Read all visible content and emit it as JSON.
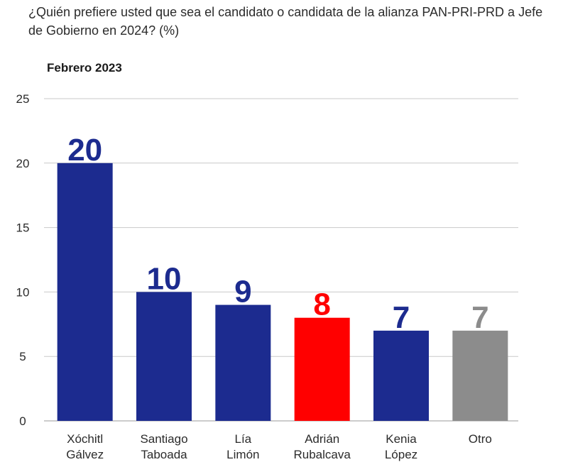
{
  "title": "¿Quién prefiere usted que sea el candidato o candidata de la alianza PAN-PRI-PRD a Jefe de Gobierno en 2024?  (%)",
  "subtitle": "Febrero 2023",
  "chart_data": {
    "type": "bar",
    "title": "¿Quién prefiere usted que sea el candidato o candidata de la alianza PAN-PRI-PRD a Jefe de Gobierno en 2024?  (%)",
    "subtitle": "Febrero 2023",
    "xlabel": "",
    "ylabel": "",
    "ylim": [
      0,
      25
    ],
    "yticks": [
      0,
      5,
      10,
      15,
      20,
      25
    ],
    "grid": true,
    "categories": [
      [
        "Xóchitl",
        "Gálvez"
      ],
      [
        "Santiago",
        "Taboada"
      ],
      [
        "Lía",
        "Limón"
      ],
      [
        "Adrián",
        "Rubalcava"
      ],
      [
        "Kenia",
        "López"
      ],
      [
        "Otro"
      ]
    ],
    "values": [
      20,
      10,
      9,
      8,
      7,
      7
    ],
    "labels": [
      "20",
      "10",
      "9",
      "8",
      "7",
      "7"
    ],
    "colors": [
      "#1c2b8f",
      "#1c2b8f",
      "#1c2b8f",
      "#ff0000",
      "#1c2b8f",
      "#8c8c8c"
    ]
  }
}
